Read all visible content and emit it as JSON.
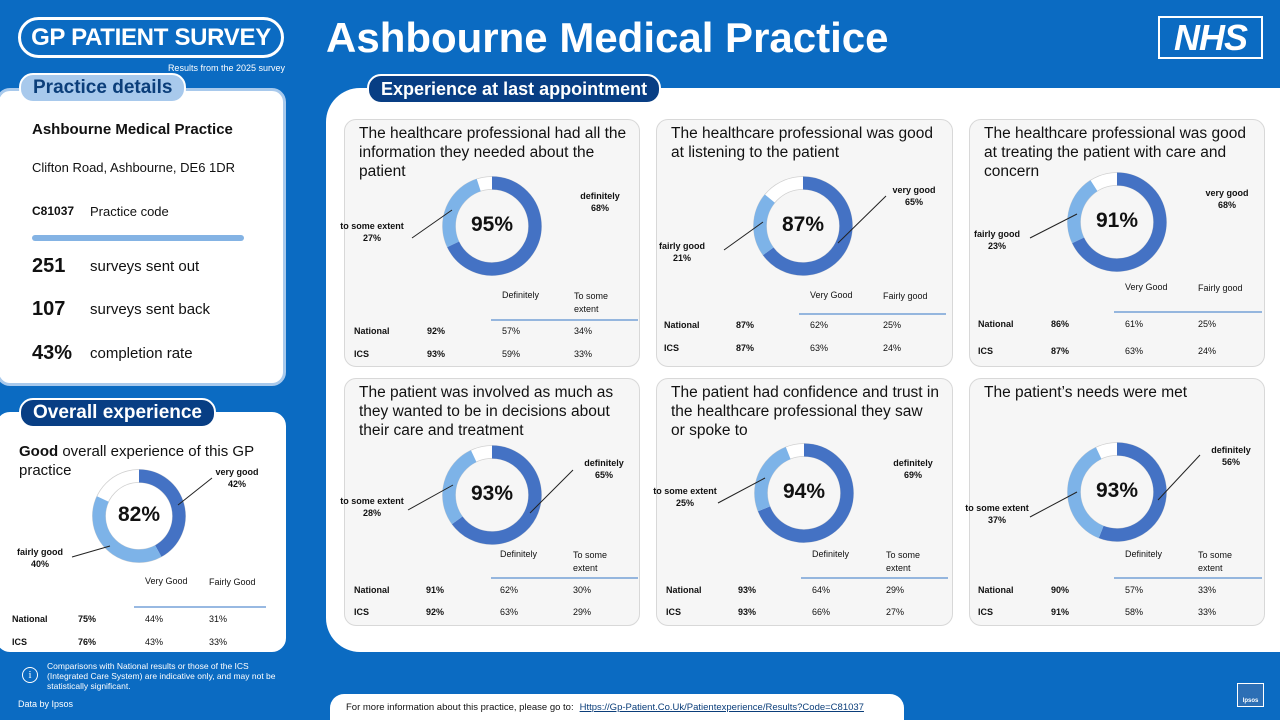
{
  "header": {
    "logo_text": "GP PATIENT SURVEY",
    "logo_sub": "Results from the 2025 survey",
    "title": "Ashbourne Medical Practice",
    "nhs": "NHS"
  },
  "practice_details": {
    "tab": "Practice details",
    "name": "Ashbourne Medical Practice",
    "address": "Clifton Road, Ashbourne, DE6 1DR",
    "code": "C81037",
    "code_label": "Practice code",
    "sent_out": "251",
    "sent_out_label": "surveys sent out",
    "sent_back": "107",
    "sent_back_label": "surveys sent back",
    "completion": "43%",
    "completion_label": "completion rate"
  },
  "overall": {
    "tab": "Overall experience",
    "title_bold": "Good",
    "title_rest": " overall experience of this GP practice"
  },
  "experience_tab": "Experience at last appointment",
  "colors": {
    "dark": "#4472c4",
    "light": "#7db3e8",
    "track": "#ffffff"
  },
  "chart_data": [
    {
      "type": "pie",
      "title": "Good overall experience of this GP practice",
      "total": "82%",
      "segments": [
        {
          "label": "very good",
          "value": 42
        },
        {
          "label": "fairly good",
          "value": 40
        }
      ],
      "table": {
        "headers": [
          "Very Good",
          "Fairly Good"
        ],
        "rows": [
          {
            "name": "National",
            "total": "75%",
            "a": "44%",
            "b": "31%"
          },
          {
            "name": "ICS",
            "total": "76%",
            "a": "43%",
            "b": "33%"
          }
        ]
      }
    },
    {
      "type": "pie",
      "title": "The healthcare professional had all the information they needed about the patient",
      "total": "95%",
      "segments": [
        {
          "label": "definitely",
          "value": 68
        },
        {
          "label": "to some extent",
          "value": 27
        }
      ],
      "table": {
        "headers": [
          "Definitely",
          "To some extent"
        ],
        "rows": [
          {
            "name": "National",
            "total": "92%",
            "a": "57%",
            "b": "34%"
          },
          {
            "name": "ICS",
            "total": "93%",
            "a": "59%",
            "b": "33%"
          }
        ]
      }
    },
    {
      "type": "pie",
      "title": "The healthcare professional was good at listening to the patient",
      "total": "87%",
      "segments": [
        {
          "label": "very good",
          "value": 65
        },
        {
          "label": "fairly good",
          "value": 21
        }
      ],
      "table": {
        "headers": [
          "Very Good",
          "Fairly good"
        ],
        "rows": [
          {
            "name": "National",
            "total": "87%",
            "a": "62%",
            "b": "25%"
          },
          {
            "name": "ICS",
            "total": "87%",
            "a": "63%",
            "b": "24%"
          }
        ]
      }
    },
    {
      "type": "pie",
      "title": "The healthcare professional was good at treating the patient with care and concern",
      "total": "91%",
      "segments": [
        {
          "label": "very good",
          "value": 68
        },
        {
          "label": "fairly good",
          "value": 23
        }
      ],
      "table": {
        "headers": [
          "Very Good",
          "Fairly good"
        ],
        "rows": [
          {
            "name": "National",
            "total": "86%",
            "a": "61%",
            "b": "25%"
          },
          {
            "name": "ICS",
            "total": "87%",
            "a": "63%",
            "b": "24%"
          }
        ]
      }
    },
    {
      "type": "pie",
      "title": "The patient was involved as much as they wanted to be in decisions about their care and treatment",
      "total": "93%",
      "segments": [
        {
          "label": "definitely",
          "value": 65
        },
        {
          "label": "to some extent",
          "value": 28
        }
      ],
      "table": {
        "headers": [
          "Definitely",
          "To some extent"
        ],
        "rows": [
          {
            "name": "National",
            "total": "91%",
            "a": "62%",
            "b": "30%"
          },
          {
            "name": "ICS",
            "total": "92%",
            "a": "63%",
            "b": "29%"
          }
        ]
      }
    },
    {
      "type": "pie",
      "title": "The patient had confidence and trust in the healthcare professional they saw or spoke to",
      "total": "94%",
      "segments": [
        {
          "label": "definitely",
          "value": 69
        },
        {
          "label": "to some extent",
          "value": 25
        }
      ],
      "table": {
        "headers": [
          "Definitely",
          "To some extent"
        ],
        "rows": [
          {
            "name": "National",
            "total": "93%",
            "a": "64%",
            "b": "29%"
          },
          {
            "name": "ICS",
            "total": "93%",
            "a": "66%",
            "b": "27%"
          }
        ]
      }
    },
    {
      "type": "pie",
      "title": "The patient’s needs were met",
      "total": "93%",
      "segments": [
        {
          "label": "definitely",
          "value": 56
        },
        {
          "label": "to some extent",
          "value": 37
        }
      ],
      "table": {
        "headers": [
          "Definitely",
          "To some extent"
        ],
        "rows": [
          {
            "name": "National",
            "total": "90%",
            "a": "57%",
            "b": "33%"
          },
          {
            "name": "ICS",
            "total": "91%",
            "a": "58%",
            "b": "33%"
          }
        ]
      }
    }
  ],
  "footer": {
    "note": "Comparisons with National results or those of the ICS (Integrated Care System) are indicative only, and may not be statistically significant.",
    "data_by": "Data by Ipsos",
    "url_prefix": "For more information about this practice, please go to:",
    "url": "Https://Gp-Patient.Co.Uk/Patientexperience/Results?Code=C81037",
    "ipsos": "Ipsos"
  }
}
